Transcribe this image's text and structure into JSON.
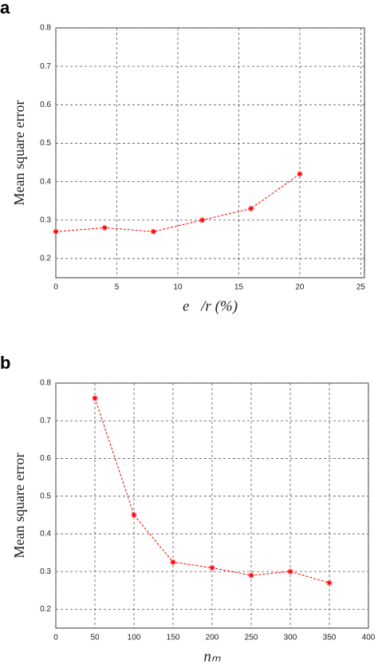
{
  "chart_data": [
    {
      "type": "line",
      "panel": "a",
      "ylabel": "Mean square error",
      "xlabel": "e⃗/r (%)",
      "x": [
        0,
        4,
        8,
        12,
        16,
        20
      ],
      "series": [
        {
          "color": "#ff0000",
          "values": [
            0.27,
            0.28,
            0.27,
            0.3,
            0.33,
            0.42
          ]
        }
      ],
      "xlim": [
        0,
        25.3
      ],
      "xticks": [
        0,
        5,
        10,
        15,
        20,
        25
      ],
      "ylim": [
        0.15,
        0.8
      ],
      "yticks": [
        0.2,
        0.3,
        0.4,
        0.5,
        0.6,
        0.7,
        0.8
      ],
      "grid": true
    },
    {
      "type": "line",
      "panel": "b",
      "ylabel": "Mean square error",
      "xlabel": "nₘ",
      "x": [
        50,
        100,
        150,
        200,
        250,
        300,
        350
      ],
      "series": [
        {
          "color": "#ff0000",
          "values": [
            0.76,
            0.45,
            0.325,
            0.31,
            0.29,
            0.3,
            0.27
          ]
        }
      ],
      "xlim": [
        0,
        400
      ],
      "xticks": [
        0,
        50,
        100,
        150,
        200,
        250,
        300,
        350,
        400
      ],
      "ylim": [
        0.15,
        0.8
      ],
      "yticks": [
        0.2,
        0.3,
        0.4,
        0.5,
        0.6,
        0.7,
        0.8
      ],
      "grid": true
    }
  ]
}
